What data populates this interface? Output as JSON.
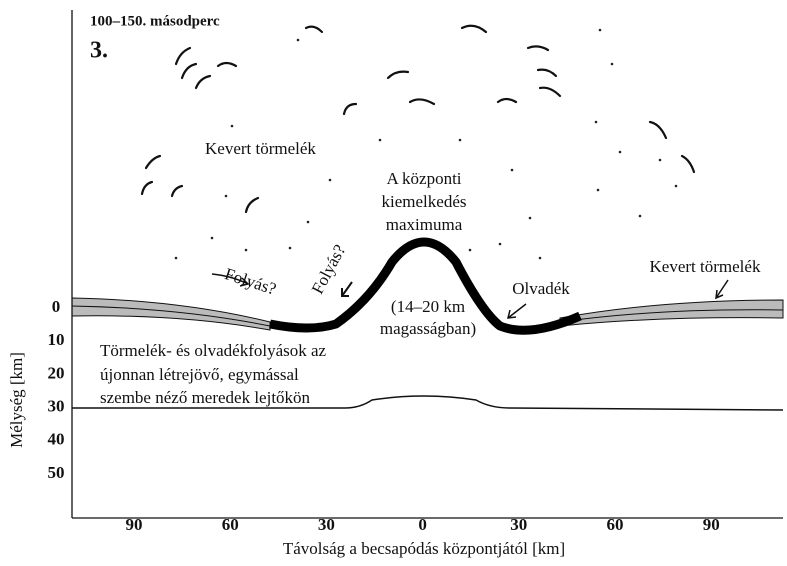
{
  "header": {
    "time": "100–150. másodperc",
    "panel": "3."
  },
  "labels": {
    "mixed_debris_left": "Kevert törmelék",
    "central_uplift": [
      "A központi",
      "kiemelkedés",
      "maximuma"
    ],
    "flow_left": "Folyás?",
    "flow_right": "Folyás?",
    "mixed_debris_right": "Kevert törmelék",
    "melt": "Olvadék",
    "height": [
      "(14–20 km",
      "magasságban)"
    ],
    "flows_note": [
      "Törmelék- és olvadékfolyások az",
      "újonnan létrejövő, egymással",
      "szembe néző meredek lejtőkön"
    ]
  },
  "axes": {
    "y_label": "Mélység [km]",
    "y_ticks": [
      0,
      10,
      20,
      30,
      40,
      50
    ],
    "x_label": "Távolság a becsapódás központjától [km]",
    "x_ticks": [
      90,
      60,
      30,
      0,
      30,
      60,
      90
    ]
  }
}
